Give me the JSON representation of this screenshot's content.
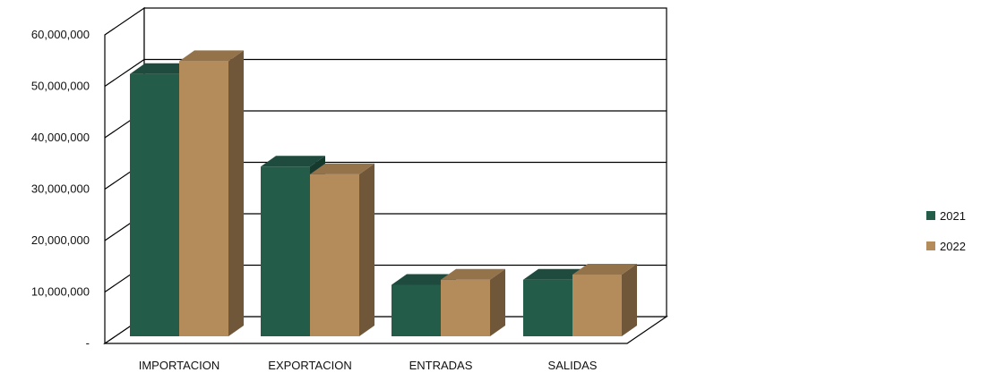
{
  "chart_data": {
    "type": "bar",
    "style": "3d-clustered",
    "title": "",
    "xlabel": "",
    "ylabel": "",
    "categories": [
      "IMPORTACION",
      "EXPORTACION",
      "ENTRADAS",
      "SALIDAS"
    ],
    "series": [
      {
        "name": "2021",
        "color": "#245c4a",
        "values": [
          51000000,
          33000000,
          10000000,
          11000000
        ]
      },
      {
        "name": "2022",
        "color": "#b48c5c",
        "values": [
          53500000,
          31500000,
          11000000,
          12000000
        ]
      }
    ],
    "ylim": [
      0,
      60000000
    ],
    "yticks": [
      {
        "value": 0,
        "label": "-"
      },
      {
        "value": 10000000,
        "label": "10,000,000"
      },
      {
        "value": 20000000,
        "label": "20,000,000"
      },
      {
        "value": 30000000,
        "label": "30,000,000"
      },
      {
        "value": 40000000,
        "label": "40,000,000"
      },
      {
        "value": 50000000,
        "label": "50,000,000"
      },
      {
        "value": 60000000,
        "label": "60,000,000"
      }
    ],
    "grid": true,
    "legend_position": "right"
  }
}
